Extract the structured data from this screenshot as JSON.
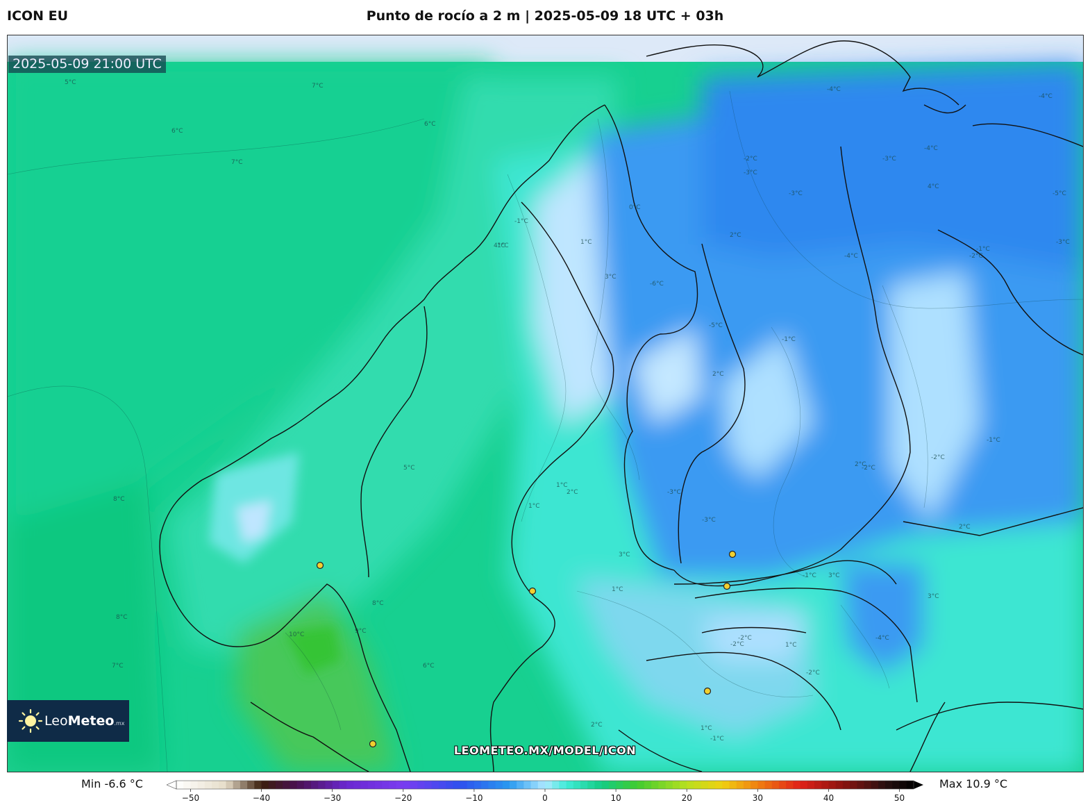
{
  "header": {
    "model": "ICON EU",
    "title": "Punto de rocío a 2 m | 2025-05-09 18 UTC + 03h"
  },
  "map": {
    "valid_time": "2025-05-09 21:00 UTC",
    "watermark": "LEOMETEO.MX/MODEL/ICON",
    "contour_labels": [
      "5°C",
      "6°C",
      "7°C",
      "8°C",
      "8°C",
      "7°C",
      "7°C",
      "6°C",
      "6°C",
      "-1°C",
      "1°C",
      "1°C",
      "-1°C",
      "0°C",
      "3°C",
      "-6°C",
      "-5°C",
      "-2°C",
      "-3°C",
      "-4°C",
      "-4°C",
      "-4°C",
      "-3°C",
      "-2°C",
      "-2°C",
      "-3°C",
      "-3°C",
      "-4°C",
      "-5°C",
      "-1°C",
      "-2°C",
      "2°C",
      "4°C",
      "1°C",
      "1°C",
      "1°C",
      "2°C",
      "3°C",
      "2°C",
      "4°C",
      "2°C",
      "10°C",
      "9°C",
      "8°C",
      "1°C",
      "1°C",
      "-1°C",
      "-2°C",
      "-1°C",
      "2°C",
      "3°C",
      "-1°C",
      "-2°C",
      "-3°C",
      "-3°C",
      "-2°C",
      "-2°C",
      "-4°C",
      "3°C",
      "2°C",
      "5°C"
    ],
    "colors": {
      "sea": "#17d090",
      "land_green": "#2fd86a",
      "cold_blue": "#2e8ff0",
      "ice_light": "#bfe6ff",
      "cyan": "#3ee6d2",
      "border": "#111111",
      "header_strip": "#dde9f8"
    }
  },
  "logo": {
    "brand_light": "Leo",
    "brand_bold": "Meteo",
    "suffix": ".mx"
  },
  "colorbar": {
    "min_label": "Min -6.6 °C",
    "max_label": "Max 10.9 °C",
    "ticks": [
      "−50",
      "−40",
      "−30",
      "−20",
      "−10",
      "0",
      "10",
      "20",
      "30",
      "40",
      "50"
    ],
    "tick_values": [
      -50,
      -40,
      -30,
      -20,
      -10,
      0,
      10,
      20,
      30,
      40,
      50
    ],
    "range": [
      -52,
      52
    ],
    "stops": [
      {
        "v": -52,
        "c": "#ffffff"
      },
      {
        "v": -45,
        "c": "#e6dcc8"
      },
      {
        "v": -40,
        "c": "#3a1e0c"
      },
      {
        "v": -35,
        "c": "#4a1050"
      },
      {
        "v": -28,
        "c": "#6a28d0"
      },
      {
        "v": -20,
        "c": "#7a3cf0"
      },
      {
        "v": -12,
        "c": "#2e50ee"
      },
      {
        "v": -5,
        "c": "#2a9af0"
      },
      {
        "v": 0,
        "c": "#aee8ff"
      },
      {
        "v": 3,
        "c": "#40ecd8"
      },
      {
        "v": 8,
        "c": "#14cc84"
      },
      {
        "v": 13,
        "c": "#40cc30"
      },
      {
        "v": 20,
        "c": "#b8e020"
      },
      {
        "v": 25,
        "c": "#f0d010"
      },
      {
        "v": 30,
        "c": "#f08010"
      },
      {
        "v": 36,
        "c": "#e02018"
      },
      {
        "v": 42,
        "c": "#8a1410"
      },
      {
        "v": 48,
        "c": "#281010"
      },
      {
        "v": 52,
        "c": "#000000"
      }
    ]
  },
  "cities": [
    {
      "name": "city-marker"
    },
    {
      "name": "city-marker"
    },
    {
      "name": "city-marker"
    },
    {
      "name": "city-marker"
    },
    {
      "name": "city-marker"
    },
    {
      "name": "city-marker"
    },
    {
      "name": "city-marker"
    }
  ]
}
